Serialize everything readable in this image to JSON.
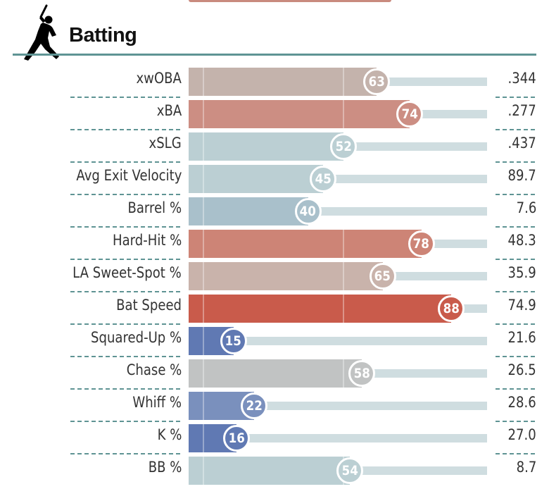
{
  "section": {
    "title": "Batting",
    "icon": "batter-silhouette-icon"
  },
  "chart_data": {
    "type": "bar",
    "orientation": "horizontal",
    "xlim": [
      0,
      100
    ],
    "categories": [
      "xwOBA",
      "xBA",
      "xSLG",
      "Avg Exit Velocity",
      "Barrel %",
      "Hard-Hit %",
      "LA Sweet-Spot %",
      "Bat Speed",
      "Squared-Up %",
      "Chase %",
      "Whiff %",
      "K %",
      "BB %"
    ],
    "percentiles": [
      63,
      74,
      52,
      45,
      40,
      78,
      65,
      88,
      15,
      58,
      22,
      16,
      54
    ],
    "stat_values": [
      ".344",
      ".277",
      ".437",
      "89.7",
      "7.6",
      "48.3",
      "35.9",
      "74.9",
      "21.6",
      "26.5",
      "28.6",
      "27.0",
      "8.7"
    ],
    "colors": [
      "#c4b3ac",
      "#cc8e83",
      "#bbcfd3",
      "#bbcfd3",
      "#a9c0cb",
      "#cd8476",
      "#c9b3ab",
      "#c95b4b",
      "#6079b3",
      "#c1c3c3",
      "#7a90bd",
      "#6079b3",
      "#bbcfd3"
    ],
    "grid": true
  }
}
